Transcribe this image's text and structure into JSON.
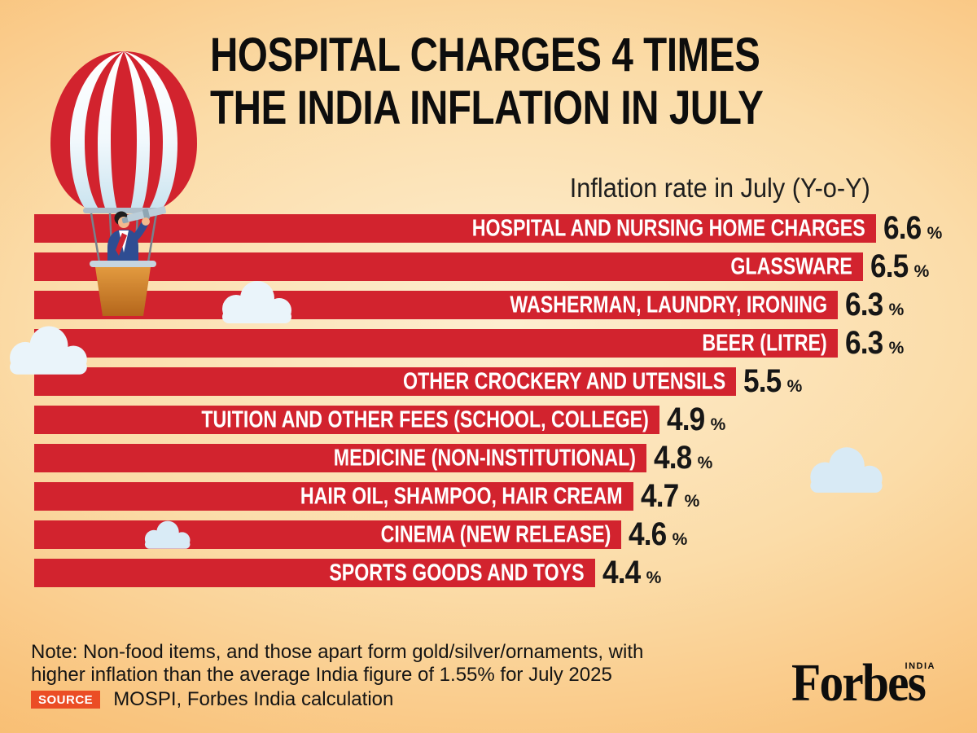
{
  "title": {
    "line1": "HOSPITAL CHARGES 4 TIMES",
    "line2": "THE INDIA INFLATION IN JULY"
  },
  "subtitle": "Inflation rate in July (Y-o-Y)",
  "chart_data": {
    "type": "bar",
    "orientation": "horizontal",
    "title": "Inflation rate in July (Y-o-Y)",
    "categories": [
      "HOSPITAL AND NURSING HOME CHARGES",
      "GLASSWARE",
      "WASHERMAN, LAUNDRY, IRONING",
      "BEER (LITRE)",
      "OTHER CROCKERY AND UTENSILS",
      "TUITION AND OTHER FEES (SCHOOL, COLLEGE)",
      "MEDICINE (NON-INSTITUTIONAL)",
      "HAIR OIL, SHAMPOO, HAIR CREAM",
      "CINEMA (NEW RELEASE)",
      "SPORTS GOODS AND TOYS"
    ],
    "values": [
      6.6,
      6.5,
      6.3,
      6.3,
      5.5,
      4.9,
      4.8,
      4.7,
      4.6,
      4.4
    ],
    "value_suffix": "%",
    "xlim": [
      0,
      6.6
    ],
    "grid": false,
    "legend": "none",
    "bar_color": "#D2232E",
    "label_color": "#FFFFFF",
    "value_color": "#161616"
  },
  "note": {
    "line1": "Note: Non-food items, and those apart form gold/silver/ornaments, with",
    "line2": "higher inflation than the average India figure of 1.55% for July 2025"
  },
  "source": {
    "badge": "SOURCE",
    "text": "MOSPI, Forbes India calculation",
    "badge_color": "#EB4D25"
  },
  "branding": {
    "logo": "Forbes",
    "region": "INDIA"
  },
  "illustration": {
    "alt": "Businessman with telescope in a red and white striped hot air balloon"
  },
  "colors": {
    "bar_red": "#D2232E",
    "background_center": "#FDEED0",
    "background_edge": "#F7B25C",
    "cloud_light": "#EAF4FA",
    "cloud_blue": "#D8EAF5"
  }
}
